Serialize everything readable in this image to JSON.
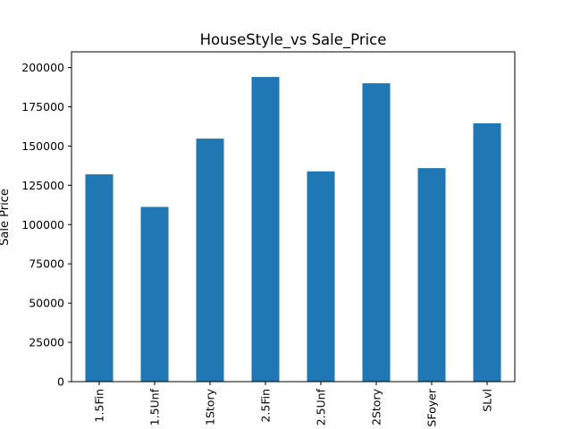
{
  "chart_data": {
    "type": "bar",
    "title": "HouseStyle_vs Sale_Price",
    "xlabel": "",
    "ylabel": "Sale Price",
    "categories": [
      "1.5Fin",
      "1.5Unf",
      "1Story",
      "2.5Fin",
      "2.5Unf",
      "2Story",
      "SFoyer",
      "SLvl"
    ],
    "values": [
      132000,
      111250,
      154750,
      194000,
      133900,
      190000,
      135960,
      164500
    ],
    "ylim": [
      0,
      210000
    ],
    "yticks": [
      0,
      25000,
      50000,
      75000,
      100000,
      125000,
      150000,
      175000,
      200000
    ],
    "ytick_labels": [
      "0",
      "25000",
      "50000",
      "75000",
      "100000",
      "125000",
      "150000",
      "175000",
      "200000"
    ],
    "bar_color": "#1f77b4",
    "grid": false,
    "legend": "none"
  }
}
